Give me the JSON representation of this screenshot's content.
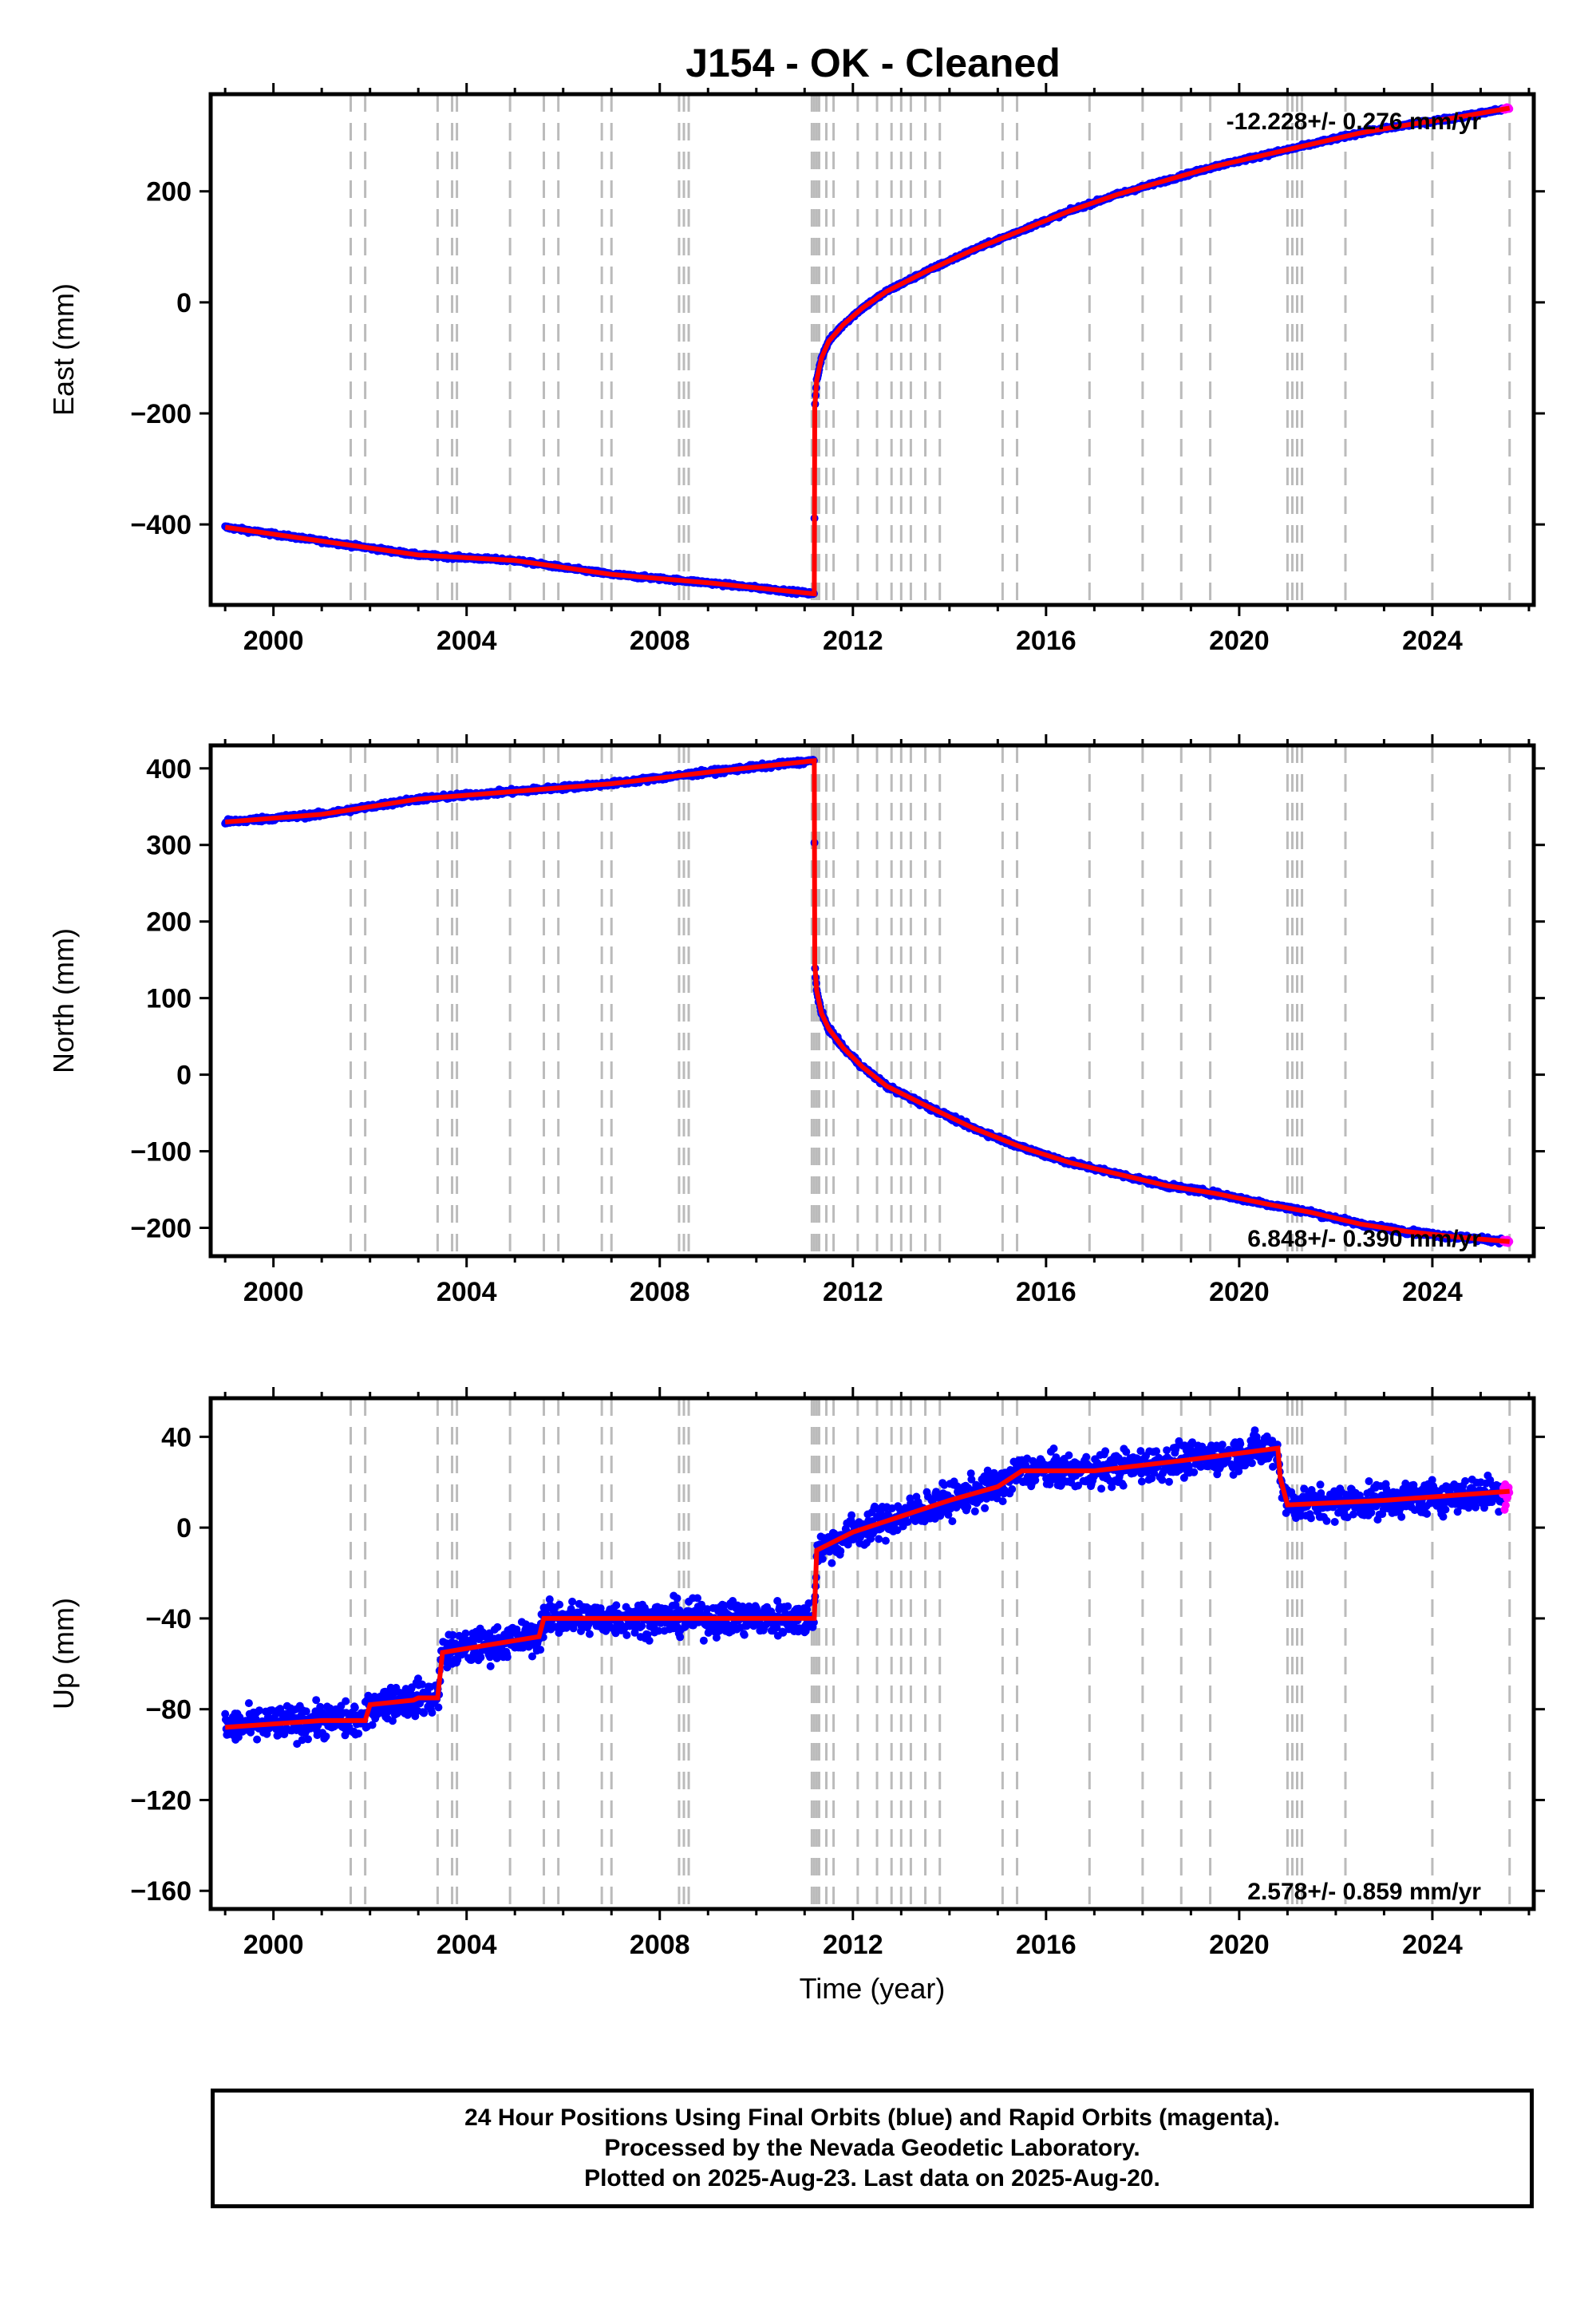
{
  "title": "J154  - OK - Cleaned",
  "colors": {
    "final_orbits": "#0000ff",
    "rapid_orbits": "#ff00ff",
    "model": "#ff0000",
    "event_lines": "#bbbbbb"
  },
  "chart_data": [
    {
      "type": "scatter",
      "component": "east",
      "ylabel": "East (mm)",
      "xlabel": "",
      "xlim": [
        1998.7,
        2026.1
      ],
      "ylim": [
        -545,
        375
      ],
      "xticks": [
        2000,
        2004,
        2008,
        2012,
        2016,
        2020,
        2024
      ],
      "yticks": [
        -400,
        -200,
        0,
        200
      ],
      "rate_label": "-12.228+/- 0.276 mm/yr",
      "rate_position": "top-right",
      "grid": false,
      "model_curve": {
        "x": [
          1999.0,
          2001.0,
          2003.0,
          2005.0,
          2007.0,
          2009.0,
          2011.2,
          2011.21,
          2011.25,
          2011.35,
          2011.5,
          2011.8,
          2012.2,
          2012.7,
          2013.5,
          2014.5,
          2015.5,
          2016.5,
          2017.5,
          2018.5,
          2019.5,
          2020.5,
          2021.5,
          2022.5,
          2023.5,
          2024.5,
          2025.6
        ],
        "y": [
          -405,
          -430,
          -455,
          -465,
          -490,
          -505,
          -525,
          -190,
          -140,
          -100,
          -70,
          -40,
          -10,
          20,
          55,
          95,
          130,
          165,
          195,
          220,
          245,
          265,
          285,
          305,
          320,
          333,
          350
        ]
      }
    },
    {
      "type": "scatter",
      "component": "north",
      "ylabel": "North (mm)",
      "xlabel": "",
      "xlim": [
        1998.7,
        2026.1
      ],
      "ylim": [
        -237,
        430
      ],
      "xticks": [
        2000,
        2004,
        2008,
        2012,
        2016,
        2020,
        2024
      ],
      "yticks": [
        -200,
        -100,
        0,
        100,
        200,
        300,
        400
      ],
      "rate_label": "6.848+/- 0.390 mm/yr",
      "rate_position": "bottom-right",
      "grid": false,
      "model_curve": {
        "x": [
          1999.0,
          2001.0,
          2003.0,
          2005.0,
          2007.0,
          2009.0,
          2011.2,
          2011.21,
          2011.25,
          2011.35,
          2011.5,
          2011.8,
          2012.2,
          2012.7,
          2013.5,
          2014.5,
          2015.5,
          2016.5,
          2017.5,
          2018.5,
          2019.5,
          2020.5,
          2021.5,
          2022.5,
          2023.5,
          2024.5,
          2025.6
        ],
        "y": [
          330,
          340,
          360,
          370,
          380,
          395,
          410,
          145,
          110,
          80,
          60,
          35,
          10,
          -15,
          -40,
          -70,
          -95,
          -115,
          -130,
          -145,
          -155,
          -168,
          -180,
          -195,
          -205,
          -212,
          -218
        ]
      }
    },
    {
      "type": "scatter",
      "component": "up",
      "ylabel": "Up (mm)",
      "xlabel": "Time (year)",
      "xlim": [
        1998.7,
        2026.1
      ],
      "ylim": [
        -168,
        57
      ],
      "xticks": [
        2000,
        2004,
        2008,
        2012,
        2016,
        2020,
        2024
      ],
      "yticks": [
        -160,
        -120,
        -80,
        -40,
        0,
        40
      ],
      "rate_label": "2.578+/- 0.859 mm/yr",
      "rate_position": "bottom-right",
      "grid": false,
      "model_curve": {
        "x": [
          1999.0,
          2001.0,
          2001.9,
          2002.0,
          2002.9,
          2003.0,
          2003.4,
          2003.5,
          2005.5,
          2005.6,
          2011.2,
          2011.25,
          2012.0,
          2013.0,
          2014.0,
          2015.0,
          2015.5,
          2017.0,
          2019.0,
          2020.8,
          2020.85,
          2021.0,
          2023.0,
          2025.6
        ],
        "y": [
          -88,
          -85,
          -85,
          -78,
          -76,
          -75,
          -75,
          -55,
          -48,
          -40,
          -40,
          -10,
          -2,
          5,
          12,
          18,
          25,
          25,
          30,
          35,
          22,
          10,
          12,
          16
        ]
      }
    }
  ],
  "event_lines_year": [
    2001.6,
    2001.9,
    2003.4,
    2003.7,
    2003.8,
    2004.9,
    2005.6,
    2005.9,
    2006.8,
    2007.0,
    2008.4,
    2008.5,
    2008.6,
    2011.15,
    2011.2,
    2011.25,
    2011.3,
    2011.45,
    2011.6,
    2012.1,
    2012.5,
    2012.8,
    2013.0,
    2013.2,
    2013.5,
    2013.8,
    2015.1,
    2015.4,
    2016.9,
    2018.0,
    2018.8,
    2019.4,
    2021.0,
    2021.1,
    2021.2,
    2021.3,
    2022.2,
    2024.0,
    2025.6
  ],
  "caption": {
    "line1": "24 Hour Positions Using Final Orbits (blue) and Rapid Orbits (magenta).",
    "line2": "Processed by the Nevada Geodetic Laboratory.",
    "line3": "Plotted on 2025-Aug-23. Last data on 2025-Aug-20."
  }
}
